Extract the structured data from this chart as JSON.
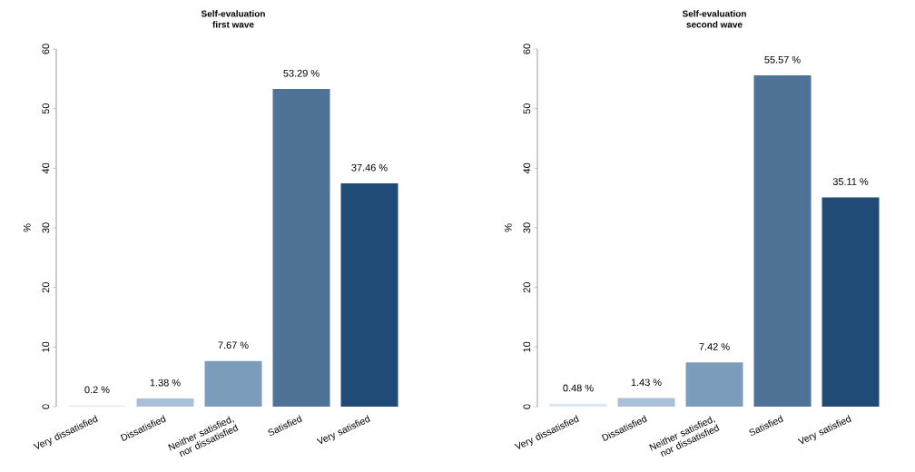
{
  "chart_data": [
    {
      "type": "bar",
      "title": "Self-evaluation",
      "subtitle": "first wave",
      "ylabel": "%",
      "categories": [
        "Very dissatisfied",
        "Dissatisfied",
        "Neither satisfied, nor dissatisfied",
        "Satisfied",
        "Very satisfied"
      ],
      "values": [
        0.2,
        1.38,
        7.67,
        53.29,
        37.46
      ],
      "value_labels": [
        "0.2 %",
        "1.38 %",
        "7.67 %",
        "53.29 %",
        "37.46 %"
      ],
      "colors": [
        "#d9e7f5",
        "#a8c0d9",
        "#7b9cba",
        "#4e7397",
        "#1f4b76"
      ],
      "ylim": [
        0,
        60
      ],
      "yticks": [
        0,
        10,
        20,
        30,
        40,
        50,
        60
      ]
    },
    {
      "type": "bar",
      "title": "Self-evaluation",
      "subtitle": "second wave",
      "ylabel": "%",
      "categories": [
        "Very dissatisfied",
        "Dissatisfied",
        "Neither satisfied, nor dissatisfied",
        "Satisfied",
        "Very satisfied"
      ],
      "values": [
        0.48,
        1.43,
        7.42,
        55.57,
        35.11
      ],
      "value_labels": [
        "0.48 %",
        "1.43 %",
        "7.42 %",
        "55.57 %",
        "35.11 %"
      ],
      "colors": [
        "#d9e7f5",
        "#a8c0d9",
        "#7b9cba",
        "#4e7397",
        "#1f4b76"
      ],
      "ylim": [
        0,
        60
      ],
      "yticks": [
        0,
        10,
        20,
        30,
        40,
        50,
        60
      ]
    }
  ]
}
